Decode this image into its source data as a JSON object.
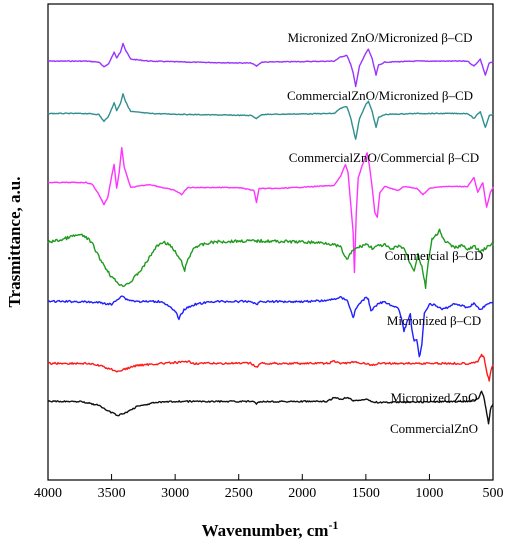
{
  "chart_data": {
    "type": "line",
    "title": "",
    "xlabel": "Wavenumber, cm",
    "xlabel_superscript": "-1",
    "ylabel": "Trasmittance, a.u.",
    "xlim": [
      4000,
      500
    ],
    "x_reversed": true,
    "x_ticks": [
      4000,
      3500,
      3000,
      2500,
      2000,
      1500,
      1000,
      500
    ],
    "y_ticks_shown": false,
    "grid": false,
    "legend": "none (series labelled inline above each trace)",
    "series": [
      {
        "name": "Micronized ZnO/Micronized β–CD",
        "color": "#9933ff",
        "baseline": 0.12,
        "points": [
          [
            4000,
            0
          ],
          [
            3700,
            0
          ],
          [
            3600,
            -1
          ],
          [
            3560,
            -6
          ],
          [
            3520,
            -2
          ],
          [
            3480,
            9
          ],
          [
            3460,
            3
          ],
          [
            3430,
            9
          ],
          [
            3410,
            18
          ],
          [
            3390,
            11
          ],
          [
            3350,
            2
          ],
          [
            3200,
            0
          ],
          [
            2900,
            -1
          ],
          [
            2400,
            -2
          ],
          [
            2360,
            -5
          ],
          [
            2320,
            -1
          ],
          [
            1750,
            0
          ],
          [
            1700,
            4
          ],
          [
            1650,
            6
          ],
          [
            1620,
            -3
          ],
          [
            1600,
            -12
          ],
          [
            1580,
            -25
          ],
          [
            1550,
            -5
          ],
          [
            1500,
            8
          ],
          [
            1480,
            12
          ],
          [
            1450,
            2
          ],
          [
            1420,
            -14
          ],
          [
            1400,
            -4
          ],
          [
            1350,
            -1
          ],
          [
            1100,
            0
          ],
          [
            700,
            0
          ],
          [
            650,
            -5
          ],
          [
            600,
            2
          ],
          [
            560,
            -14
          ],
          [
            530,
            -2
          ],
          [
            500,
            -1
          ]
        ]
      },
      {
        "name": "CommercialZnO/Micronized β–CD",
        "color": "#2f8f8f",
        "baseline": 0.23,
        "points": [
          [
            4000,
            0
          ],
          [
            3700,
            0
          ],
          [
            3600,
            -1
          ],
          [
            3560,
            -8
          ],
          [
            3520,
            -2
          ],
          [
            3480,
            11
          ],
          [
            3460,
            3
          ],
          [
            3430,
            10
          ],
          [
            3410,
            20
          ],
          [
            3390,
            12
          ],
          [
            3350,
            2
          ],
          [
            3200,
            0
          ],
          [
            2900,
            -1
          ],
          [
            2400,
            -2
          ],
          [
            2360,
            -5
          ],
          [
            2320,
            -1
          ],
          [
            1750,
            0
          ],
          [
            1700,
            5
          ],
          [
            1650,
            7
          ],
          [
            1620,
            -4
          ],
          [
            1600,
            -15
          ],
          [
            1580,
            -26
          ],
          [
            1550,
            -5
          ],
          [
            1500,
            9
          ],
          [
            1480,
            12
          ],
          [
            1450,
            2
          ],
          [
            1420,
            -14
          ],
          [
            1400,
            -4
          ],
          [
            1350,
            -1
          ],
          [
            1100,
            0
          ],
          [
            700,
            0
          ],
          [
            650,
            -5
          ],
          [
            600,
            2
          ],
          [
            560,
            -14
          ],
          [
            530,
            -2
          ],
          [
            500,
            -1
          ]
        ]
      },
      {
        "name": "CommercialZnO/Commercial β–CD",
        "color": "#ff33ff",
        "baseline": 0.375,
        "points": [
          [
            4000,
            0
          ],
          [
            3700,
            0
          ],
          [
            3650,
            -2
          ],
          [
            3600,
            -12
          ],
          [
            3560,
            -22
          ],
          [
            3530,
            -15
          ],
          [
            3500,
            6
          ],
          [
            3480,
            18
          ],
          [
            3460,
            -6
          ],
          [
            3440,
            10
          ],
          [
            3420,
            35
          ],
          [
            3400,
            15
          ],
          [
            3350,
            -5
          ],
          [
            3200,
            -2
          ],
          [
            3000,
            -8
          ],
          [
            2950,
            -12
          ],
          [
            2900,
            -5
          ],
          [
            2500,
            -5
          ],
          [
            2380,
            -8
          ],
          [
            2360,
            -20
          ],
          [
            2340,
            -6
          ],
          [
            2200,
            -6
          ],
          [
            1750,
            -3
          ],
          [
            1700,
            6
          ],
          [
            1660,
            18
          ],
          [
            1640,
            10
          ],
          [
            1620,
            -20
          ],
          [
            1600,
            -50
          ],
          [
            1590,
            -90
          ],
          [
            1575,
            -30
          ],
          [
            1560,
            5
          ],
          [
            1520,
            20
          ],
          [
            1490,
            30
          ],
          [
            1470,
            15
          ],
          [
            1450,
            -5
          ],
          [
            1430,
            -30
          ],
          [
            1410,
            -35
          ],
          [
            1390,
            -10
          ],
          [
            1350,
            -4
          ],
          [
            1250,
            -8
          ],
          [
            1200,
            -4
          ],
          [
            1100,
            -6
          ],
          [
            1050,
            -12
          ],
          [
            1000,
            -6
          ],
          [
            900,
            -4
          ],
          [
            700,
            -4
          ],
          [
            650,
            5
          ],
          [
            620,
            -10
          ],
          [
            580,
            0
          ],
          [
            550,
            -25
          ],
          [
            520,
            -10
          ],
          [
            500,
            -5
          ]
        ]
      },
      {
        "name": "Commercial β–CD",
        "color": "#1f9a1f",
        "baseline": 0.5,
        "noise": 3,
        "points": [
          [
            4000,
            0
          ],
          [
            3900,
            2
          ],
          [
            3800,
            6
          ],
          [
            3750,
            7
          ],
          [
            3700,
            5
          ],
          [
            3650,
            -2
          ],
          [
            3600,
            -15
          ],
          [
            3500,
            -35
          ],
          [
            3420,
            -44
          ],
          [
            3350,
            -40
          ],
          [
            3250,
            -25
          ],
          [
            3150,
            -5
          ],
          [
            3100,
            0
          ],
          [
            3050,
            -2
          ],
          [
            3000,
            -10
          ],
          [
            2950,
            -20
          ],
          [
            2925,
            -28
          ],
          [
            2900,
            -18
          ],
          [
            2850,
            -5
          ],
          [
            2700,
            0
          ],
          [
            2500,
            1
          ],
          [
            2300,
            1
          ],
          [
            2000,
            0
          ],
          [
            1800,
            -1
          ],
          [
            1700,
            -5
          ],
          [
            1650,
            -18
          ],
          [
            1600,
            -8
          ],
          [
            1500,
            -2
          ],
          [
            1450,
            -6
          ],
          [
            1400,
            -4
          ],
          [
            1350,
            -3
          ],
          [
            1300,
            -8
          ],
          [
            1250,
            -4
          ],
          [
            1200,
            -6
          ],
          [
            1150,
            -22
          ],
          [
            1120,
            -28
          ],
          [
            1090,
            -12
          ],
          [
            1060,
            -25
          ],
          [
            1030,
            -45
          ],
          [
            1010,
            -20
          ],
          [
            980,
            2
          ],
          [
            950,
            6
          ],
          [
            920,
            12
          ],
          [
            900,
            4
          ],
          [
            850,
            -2
          ],
          [
            800,
            -6
          ],
          [
            750,
            -3
          ],
          [
            700,
            -8
          ],
          [
            650,
            -4
          ],
          [
            600,
            -10
          ],
          [
            560,
            -6
          ],
          [
            500,
            -2
          ]
        ]
      },
      {
        "name": "Micronized β–CD",
        "color": "#1f1fff",
        "baseline": 0.625,
        "noise": 2,
        "points": [
          [
            4000,
            0
          ],
          [
            3800,
            0
          ],
          [
            3600,
            -1
          ],
          [
            3500,
            -3
          ],
          [
            3420,
            6
          ],
          [
            3380,
            2
          ],
          [
            3300,
            0
          ],
          [
            3100,
            0
          ],
          [
            3000,
            -10
          ],
          [
            2970,
            -17
          ],
          [
            2930,
            -8
          ],
          [
            2850,
            -3
          ],
          [
            2700,
            0
          ],
          [
            2400,
            0
          ],
          [
            2360,
            -3
          ],
          [
            2330,
            0
          ],
          [
            2000,
            0
          ],
          [
            1800,
            1
          ],
          [
            1700,
            4
          ],
          [
            1650,
            2
          ],
          [
            1620,
            -8
          ],
          [
            1600,
            -16
          ],
          [
            1580,
            -8
          ],
          [
            1550,
            -2
          ],
          [
            1500,
            4
          ],
          [
            1480,
            2
          ],
          [
            1460,
            -10
          ],
          [
            1440,
            -6
          ],
          [
            1400,
            -2
          ],
          [
            1350,
            0
          ],
          [
            1300,
            -4
          ],
          [
            1250,
            -6
          ],
          [
            1220,
            -16
          ],
          [
            1200,
            -30
          ],
          [
            1180,
            -22
          ],
          [
            1150,
            -12
          ],
          [
            1140,
            -26
          ],
          [
            1120,
            -40
          ],
          [
            1100,
            -38
          ],
          [
            1080,
            -56
          ],
          [
            1060,
            -44
          ],
          [
            1040,
            -12
          ],
          [
            1000,
            -2
          ],
          [
            950,
            -4
          ],
          [
            900,
            -8
          ],
          [
            860,
            -6
          ],
          [
            800,
            -2
          ],
          [
            750,
            -4
          ],
          [
            700,
            -6
          ],
          [
            650,
            -2
          ],
          [
            600,
            -8
          ],
          [
            560,
            -4
          ],
          [
            500,
            -1
          ]
        ]
      },
      {
        "name": "Micronized ZnO",
        "color": "#ff1a1a",
        "baseline": 0.755,
        "noise": 2,
        "points": [
          [
            4000,
            0
          ],
          [
            3700,
            0
          ],
          [
            3600,
            -2
          ],
          [
            3500,
            -6
          ],
          [
            3450,
            -8
          ],
          [
            3400,
            -6
          ],
          [
            3300,
            -2
          ],
          [
            3100,
            0
          ],
          [
            2950,
            1
          ],
          [
            2900,
            2
          ],
          [
            2850,
            0
          ],
          [
            2400,
            0
          ],
          [
            2360,
            -4
          ],
          [
            2330,
            0
          ],
          [
            1800,
            0
          ],
          [
            1750,
            2
          ],
          [
            1700,
            0
          ],
          [
            1600,
            1
          ],
          [
            1500,
            0
          ],
          [
            1450,
            -2
          ],
          [
            1400,
            0
          ],
          [
            700,
            0
          ],
          [
            620,
            2
          ],
          [
            590,
            8
          ],
          [
            570,
            6
          ],
          [
            550,
            -8
          ],
          [
            530,
            -18
          ],
          [
            515,
            -6
          ],
          [
            500,
            -2
          ]
        ]
      },
      {
        "name": "CommercialZnO",
        "color": "#111111",
        "baseline": 0.835,
        "noise": 1.5,
        "points": [
          [
            4000,
            0
          ],
          [
            3750,
            0
          ],
          [
            3700,
            -1
          ],
          [
            3600,
            -4
          ],
          [
            3520,
            -10
          ],
          [
            3450,
            -14
          ],
          [
            3400,
            -12
          ],
          [
            3300,
            -5
          ],
          [
            3150,
            -1
          ],
          [
            3000,
            0
          ],
          [
            2400,
            0
          ],
          [
            2360,
            -2
          ],
          [
            2330,
            0
          ],
          [
            1800,
            0
          ],
          [
            1750,
            4
          ],
          [
            1700,
            2
          ],
          [
            1650,
            4
          ],
          [
            1600,
            1
          ],
          [
            1500,
            2
          ],
          [
            1450,
            0
          ],
          [
            1400,
            -1
          ],
          [
            700,
            0
          ],
          [
            620,
            2
          ],
          [
            590,
            10
          ],
          [
            575,
            6
          ],
          [
            555,
            -8
          ],
          [
            535,
            -22
          ],
          [
            520,
            -8
          ],
          [
            500,
            -2
          ]
        ]
      }
    ]
  }
}
